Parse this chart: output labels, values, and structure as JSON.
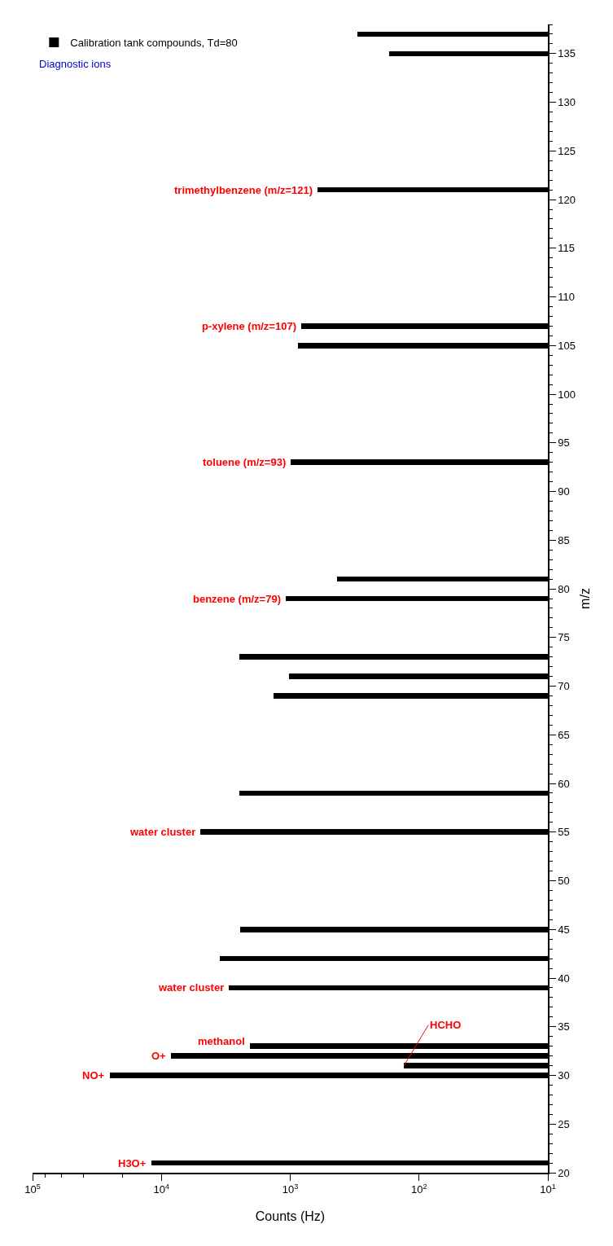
{
  "chart_data": {
    "type": "bar",
    "orientation": "horizontal",
    "xlabel": "Counts (Hz)",
    "ylabel": "m/z",
    "x": [
      21,
      30,
      31,
      32,
      33,
      39,
      42,
      45,
      55,
      59,
      69,
      71,
      73,
      79,
      81,
      93,
      105,
      107,
      121,
      135,
      137
    ],
    "series": [
      {
        "name": "Calibration tank compounds, Td=80",
        "color": "#000000",
        "values": [
          12000,
          25000,
          131,
          8400,
          2070,
          2980,
          3530,
          2450,
          4960,
          2500,
          1350,
          1020,
          2500,
          1090,
          435,
          990,
          870,
          820,
          610,
          170,
          300
        ]
      }
    ],
    "log": "x",
    "xlim": [
      100000,
      10
    ],
    "xticks": [
      {
        "value": 100000,
        "label": "10$^{5}$"
      },
      {
        "value": 10000,
        "label": "10$^{4}$"
      },
      {
        "value": 1000,
        "label": "10$^{3}$"
      },
      {
        "value": 100,
        "label": "10$^{2}$"
      },
      {
        "value": 10,
        "label": "10$^{1}$"
      }
    ],
    "ylim": [
      20,
      138
    ],
    "yticks": [
      20,
      25,
      30,
      35,
      40,
      45,
      50,
      55,
      60,
      65,
      70,
      75,
      80,
      85,
      90,
      95,
      100,
      105,
      110,
      115,
      120,
      125,
      130,
      135
    ],
    "grid": false,
    "legend": "top left",
    "annotations": [
      {
        "text": "H3O+",
        "x": 12000,
        "y": 21
      },
      {
        "text": "NO+",
        "x": 25000,
        "y": 30
      },
      {
        "text": "HCHO",
        "x": 131,
        "y": 31
      },
      {
        "text": "O+",
        "x": 8400,
        "y": 32
      },
      {
        "text": "methanol",
        "x": 2070,
        "y": 33
      },
      {
        "text": "water cluster",
        "x": 2980,
        "y": 39
      },
      {
        "text": "water cluster",
        "x": 4960,
        "y": 55
      },
      {
        "text": "benzene (m/z=79)",
        "x": 1090,
        "y": 79
      },
      {
        "text": "toluene (m/z=93)",
        "x": 990,
        "y": 93
      },
      {
        "text": "p-xylene (m/z=107)",
        "x": 820,
        "y": 107
      },
      {
        "text": "trimethylbenzene (m/z=121)",
        "x": 610,
        "y": 121
      },
      "Diagnostic ions"
    ]
  }
}
